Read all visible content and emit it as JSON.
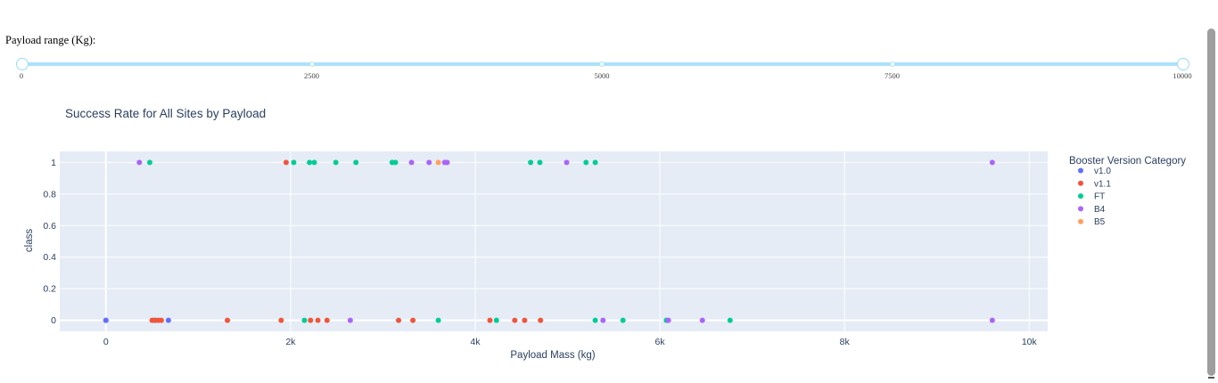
{
  "slider": {
    "label": "Payload range (Kg):",
    "min": 0,
    "max": 10000,
    "value": [
      0,
      10000
    ],
    "marks": [
      "0",
      "2500",
      "5000",
      "7500",
      "10000"
    ]
  },
  "chart_data": {
    "type": "scatter",
    "title": "Success Rate for All Sites by Payload",
    "xlabel": "Payload Mass (kg)",
    "ylabel": "class",
    "xlim": [
      -500,
      10200
    ],
    "ylim": [
      -0.07,
      1.07
    ],
    "x_ticks": [
      0,
      2000,
      4000,
      6000,
      8000,
      10000
    ],
    "x_tick_labels": [
      "0",
      "2k",
      "4k",
      "6k",
      "8k",
      "10k"
    ],
    "y_ticks": [
      0,
      0.2,
      0.4,
      0.6,
      0.8,
      1
    ],
    "y_tick_labels": [
      "0",
      "0.2",
      "0.4",
      "0.6",
      "0.8",
      "1"
    ],
    "grid": true,
    "legend_title": "Booster Version Category",
    "legend_position": "right",
    "series": [
      {
        "name": "v1.0",
        "color": "#636efa",
        "x": [
          0,
          0,
          525,
          677
        ],
        "y": [
          0,
          0,
          0,
          0
        ]
      },
      {
        "name": "v1.1",
        "color": "#ef553b",
        "x": [
          1952,
          500,
          540,
          570,
          600,
          1316,
          1898,
          2216,
          2296,
          2395,
          3170,
          3325,
          4159,
          4428,
          4535,
          4707
        ],
        "y": [
          1,
          0,
          0,
          0,
          0,
          0,
          0,
          0,
          0,
          0,
          0,
          0,
          0,
          0,
          0,
          0
        ]
      },
      {
        "name": "FT",
        "color": "#00cc96",
        "x": [
          475,
          2034,
          2205,
          2257,
          2490,
          2708,
          3100,
          3136,
          4600,
          4700,
          5200,
          5300,
          2150,
          3600,
          4230,
          5300,
          5600,
          6070,
          6760
        ],
        "y": [
          1,
          1,
          1,
          1,
          1,
          1,
          1,
          1,
          1,
          1,
          1,
          1,
          0,
          0,
          0,
          0,
          0,
          0,
          0
        ]
      },
      {
        "name": "B4",
        "color": "#ab63fa",
        "x": [
          362,
          3310,
          3500,
          3669,
          3696,
          4990,
          9600,
          2647,
          5384,
          6092,
          6460,
          9600
        ],
        "y": [
          1,
          1,
          1,
          1,
          1,
          1,
          1,
          0,
          0,
          0,
          0,
          0
        ]
      },
      {
        "name": "B5",
        "color": "#ffa15a",
        "x": [
          3600
        ],
        "y": [
          1
        ]
      }
    ]
  }
}
